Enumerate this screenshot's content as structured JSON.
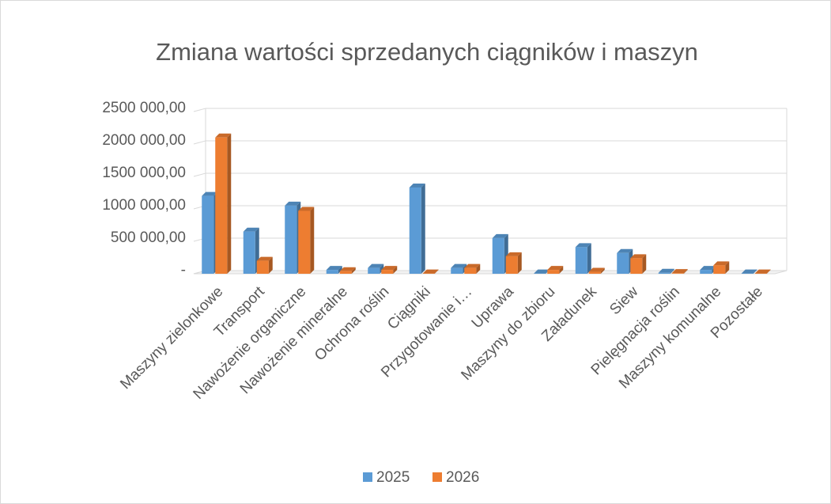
{
  "chart_data": {
    "type": "bar3d",
    "title": "Zmiana wartości sprzedanych  ciągników i maszyn",
    "categories": [
      "Maszyny zielonkowe",
      "Transport",
      "Nawożenie organiczne",
      "Nawożenie mineralne",
      "Ochrona roślin",
      "Ciągniki",
      "Przygotowanie i…",
      "Uprawa",
      "Maszyny do zbioru",
      "Załadunek",
      "Siew",
      "Pielęgnacja roślin",
      "Maszyny komunalne",
      "Pozostałe"
    ],
    "series": [
      {
        "name": "2025",
        "color": "#5b9bd5",
        "values": [
          1200000,
          650000,
          1050000,
          60000,
          90000,
          1330000,
          90000,
          550000,
          5000,
          410000,
          320000,
          15000,
          60000,
          5000
        ]
      },
      {
        "name": "2026",
        "color": "#ed7d31",
        "values": [
          2100000,
          200000,
          970000,
          40000,
          60000,
          5000,
          90000,
          270000,
          60000,
          30000,
          240000,
          10000,
          130000,
          5000
        ]
      }
    ],
    "ylim": [
      0,
      2500000
    ],
    "yticks": [
      {
        "value": 0,
        "label": "-"
      },
      {
        "value": 500000,
        "label": "500 000,00"
      },
      {
        "value": 1000000,
        "label": "1000 000,00"
      },
      {
        "value": 1500000,
        "label": "1500 000,00"
      },
      {
        "value": 2000000,
        "label": "2000 000,00"
      },
      {
        "value": 2500000,
        "label": "2500 000,00"
      }
    ],
    "grid": true,
    "legend": "bottom"
  }
}
